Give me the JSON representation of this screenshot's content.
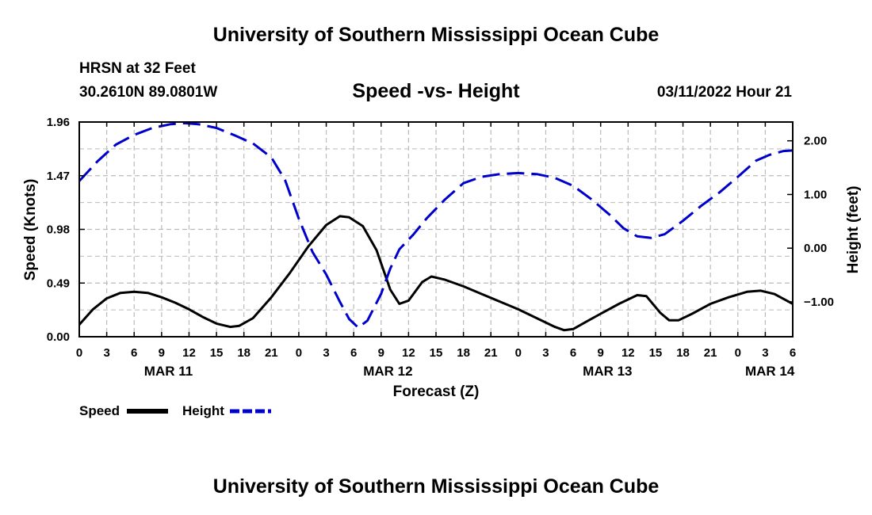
{
  "header": {
    "title": "University of Southern Mississippi Ocean Cube",
    "station": "HRSN at 32 Feet",
    "coords": "30.2610N  89.0801W",
    "chart_title": "Speed -vs- Height",
    "datetime": "03/11/2022 Hour 21"
  },
  "footer": {
    "title": "University of Southern Mississippi Ocean Cube"
  },
  "colors": {
    "speed": "#000000",
    "height": "#0000cc",
    "grid": "#bbbbbb"
  },
  "chart_data": {
    "type": "line",
    "title": "Speed -vs- Height",
    "xlabel": "Forecast (Z)",
    "ylabel": "Speed (Knots)",
    "y2label": "Height (feet)",
    "x_unit": "hours from Mar 11 00Z",
    "xlim": [
      0,
      78
    ],
    "ylim": [
      0,
      1.96
    ],
    "y2lim": [
      -1.65,
      2.35
    ],
    "x_ticks": [
      {
        "x": 0,
        "label": "0"
      },
      {
        "x": 3,
        "label": "3"
      },
      {
        "x": 6,
        "label": "6"
      },
      {
        "x": 9,
        "label": "9"
      },
      {
        "x": 12,
        "label": "12"
      },
      {
        "x": 15,
        "label": "15"
      },
      {
        "x": 18,
        "label": "18"
      },
      {
        "x": 21,
        "label": "21"
      },
      {
        "x": 24,
        "label": "0"
      },
      {
        "x": 27,
        "label": "3"
      },
      {
        "x": 30,
        "label": "6"
      },
      {
        "x": 33,
        "label": "9"
      },
      {
        "x": 36,
        "label": "12"
      },
      {
        "x": 39,
        "label": "15"
      },
      {
        "x": 42,
        "label": "18"
      },
      {
        "x": 45,
        "label": "21"
      },
      {
        "x": 48,
        "label": "0"
      },
      {
        "x": 51,
        "label": "3"
      },
      {
        "x": 54,
        "label": "6"
      },
      {
        "x": 57,
        "label": "9"
      },
      {
        "x": 60,
        "label": "12"
      },
      {
        "x": 63,
        "label": "15"
      },
      {
        "x": 66,
        "label": "18"
      },
      {
        "x": 69,
        "label": "21"
      },
      {
        "x": 72,
        "label": "0"
      },
      {
        "x": 75,
        "label": "3"
      },
      {
        "x": 78,
        "label": "6"
      }
    ],
    "date_labels": [
      {
        "x": 9.75,
        "label": "MAR 11"
      },
      {
        "x": 33.75,
        "label": "MAR 12"
      },
      {
        "x": 57.75,
        "label": "MAR 13"
      },
      {
        "x": 75.5,
        "label": "MAR 14"
      }
    ],
    "y_ticks": [
      {
        "y": 0,
        "label": "0.00"
      },
      {
        "y": 0.49,
        "label": "0.49"
      },
      {
        "y": 0.98,
        "label": "0.98"
      },
      {
        "y": 1.47,
        "label": "1.47"
      },
      {
        "y": 1.96,
        "label": "1.96"
      }
    ],
    "y2_ticks": [
      {
        "y": 2,
        "label": "2.00"
      },
      {
        "y": 1,
        "label": "1.00"
      },
      {
        "y": 0,
        "label": "0.00"
      },
      {
        "y": -1,
        "label": "−1.00"
      }
    ],
    "series": [
      {
        "name": "Speed",
        "axis": "left",
        "style": "solid",
        "points": [
          [
            0,
            0.11
          ],
          [
            1.5,
            0.25
          ],
          [
            3,
            0.35
          ],
          [
            4.5,
            0.4
          ],
          [
            6,
            0.41
          ],
          [
            7.5,
            0.4
          ],
          [
            9,
            0.36
          ],
          [
            10.5,
            0.31
          ],
          [
            12,
            0.25
          ],
          [
            13.5,
            0.18
          ],
          [
            15,
            0.12
          ],
          [
            16.5,
            0.09
          ],
          [
            17.5,
            0.1
          ],
          [
            19,
            0.17
          ],
          [
            21,
            0.36
          ],
          [
            23,
            0.58
          ],
          [
            25,
            0.82
          ],
          [
            27,
            1.02
          ],
          [
            28.5,
            1.1
          ],
          [
            29.5,
            1.09
          ],
          [
            31,
            1.01
          ],
          [
            32.5,
            0.79
          ],
          [
            34,
            0.43
          ],
          [
            35,
            0.3
          ],
          [
            36,
            0.33
          ],
          [
            37.5,
            0.5
          ],
          [
            38.5,
            0.55
          ],
          [
            40,
            0.52
          ],
          [
            42,
            0.46
          ],
          [
            44,
            0.39
          ],
          [
            46,
            0.32
          ],
          [
            48,
            0.25
          ],
          [
            50,
            0.17
          ],
          [
            52,
            0.09
          ],
          [
            53,
            0.06
          ],
          [
            54,
            0.07
          ],
          [
            55.5,
            0.14
          ],
          [
            57,
            0.21
          ],
          [
            59,
            0.3
          ],
          [
            61,
            0.38
          ],
          [
            62,
            0.37
          ],
          [
            63.5,
            0.22
          ],
          [
            64.5,
            0.15
          ],
          [
            65.5,
            0.15
          ],
          [
            67,
            0.21
          ],
          [
            69,
            0.3
          ],
          [
            71,
            0.36
          ],
          [
            73,
            0.41
          ],
          [
            74.5,
            0.42
          ],
          [
            76,
            0.39
          ],
          [
            78,
            0.3
          ]
        ]
      },
      {
        "name": "Height",
        "axis": "right",
        "style": "dashed",
        "points": [
          [
            0,
            1.25
          ],
          [
            2,
            1.62
          ],
          [
            4,
            1.93
          ],
          [
            6,
            2.11
          ],
          [
            8,
            2.24
          ],
          [
            10,
            2.31
          ],
          [
            11.5,
            2.33
          ],
          [
            13,
            2.31
          ],
          [
            15,
            2.24
          ],
          [
            17,
            2.1
          ],
          [
            19,
            1.95
          ],
          [
            21,
            1.69
          ],
          [
            22.5,
            1.27
          ],
          [
            24,
            0.55
          ],
          [
            25.5,
            -0.07
          ],
          [
            27,
            -0.49
          ],
          [
            28.5,
            -1.0
          ],
          [
            29.5,
            -1.32
          ],
          [
            30.5,
            -1.48
          ],
          [
            31.5,
            -1.35
          ],
          [
            33,
            -0.85
          ],
          [
            34,
            -0.38
          ],
          [
            35,
            -0.02
          ],
          [
            36.5,
            0.25
          ],
          [
            38,
            0.56
          ],
          [
            40,
            0.91
          ],
          [
            42,
            1.21
          ],
          [
            44,
            1.33
          ],
          [
            46,
            1.38
          ],
          [
            48,
            1.4
          ],
          [
            50,
            1.38
          ],
          [
            52,
            1.31
          ],
          [
            54,
            1.16
          ],
          [
            56,
            0.91
          ],
          [
            58,
            0.62
          ],
          [
            59.5,
            0.37
          ],
          [
            61,
            0.22
          ],
          [
            62.5,
            0.19
          ],
          [
            64,
            0.26
          ],
          [
            66,
            0.51
          ],
          [
            68,
            0.79
          ],
          [
            70,
            1.04
          ],
          [
            72,
            1.33
          ],
          [
            74,
            1.63
          ],
          [
            75.5,
            1.74
          ],
          [
            77,
            1.81
          ],
          [
            78,
            1.82
          ]
        ]
      }
    ],
    "legend": [
      {
        "name": "Speed",
        "style": "solid"
      },
      {
        "name": "Height",
        "style": "dashed"
      }
    ]
  }
}
